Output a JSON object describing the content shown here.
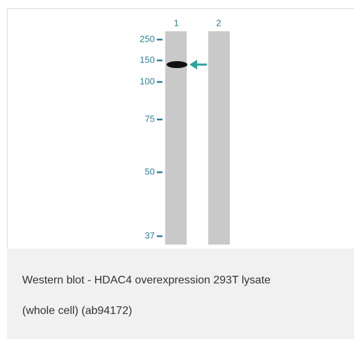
{
  "figure": {
    "lanes": [
      "1",
      "2"
    ],
    "markers": [
      "250",
      "150",
      "100",
      "75",
      "50",
      "37"
    ],
    "caption": [
      "Western blot - HDAC4 overexpression 293T lysate",
      "(whole cell) (ab94172)"
    ]
  }
}
